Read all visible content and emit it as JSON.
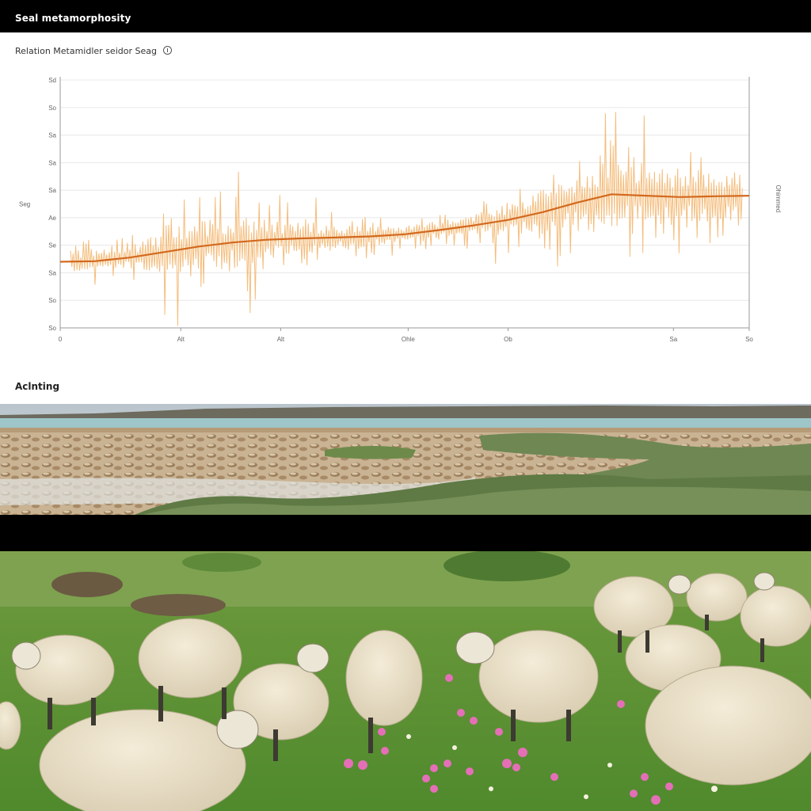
{
  "window": {
    "title": "Seal metamorphosity"
  },
  "chart_panel": {
    "title": "Relation Metamidler seidor Seag",
    "section_label": "Aclnting"
  },
  "chart_data": {
    "type": "line",
    "title": "",
    "ylabel": "Seg",
    "y2label": "Ohimmed",
    "xlabel": "",
    "x_ticks": [
      "0",
      "Alt",
      "Alt",
      "Ohle",
      "Ob",
      "Sa",
      "So"
    ],
    "y_ticks": [
      "Sd",
      "So",
      "Sa",
      "Sa",
      "Sa",
      "Ae",
      "Se",
      "Sa",
      "So",
      "So"
    ],
    "ylim": [
      0,
      9
    ],
    "grid": true,
    "colors": {
      "signal": "#f2b266",
      "trend": "#d2691e",
      "axis": "#999999",
      "grid": "#e8e8e8"
    },
    "series": [
      {
        "role": "trend",
        "x": [
          0,
          0.05,
          0.1,
          0.15,
          0.2,
          0.25,
          0.3,
          0.35,
          0.4,
          0.45,
          0.5,
          0.55,
          0.6,
          0.65,
          0.7,
          0.75,
          0.8,
          0.85,
          0.9,
          0.95,
          1.0
        ],
        "values": [
          2.4,
          2.42,
          2.55,
          2.75,
          2.95,
          3.1,
          3.2,
          3.25,
          3.28,
          3.32,
          3.4,
          3.55,
          3.72,
          3.92,
          4.2,
          4.55,
          4.85,
          4.8,
          4.75,
          4.78,
          4.8
        ]
      }
    ],
    "signal": {
      "role": "signal",
      "x_range": [
        0.015,
        0.99
      ],
      "baseline": "trend",
      "amplitude_profile_x": [
        0,
        0.1,
        0.17,
        0.26,
        0.3,
        0.4,
        0.5,
        0.6,
        0.68,
        0.75,
        0.8,
        0.86,
        0.92,
        0.99
      ],
      "amplitude_profile": [
        1.3,
        1.2,
        2.8,
        3.0,
        2.2,
        1.4,
        1.0,
        1.1,
        2.2,
        3.2,
        4.0,
        3.5,
        3.0,
        2.6
      ]
    }
  },
  "photos": [
    {
      "name": "coastal-rock-flats-photo"
    },
    {
      "name": "sheep-meadow-photo"
    }
  ]
}
